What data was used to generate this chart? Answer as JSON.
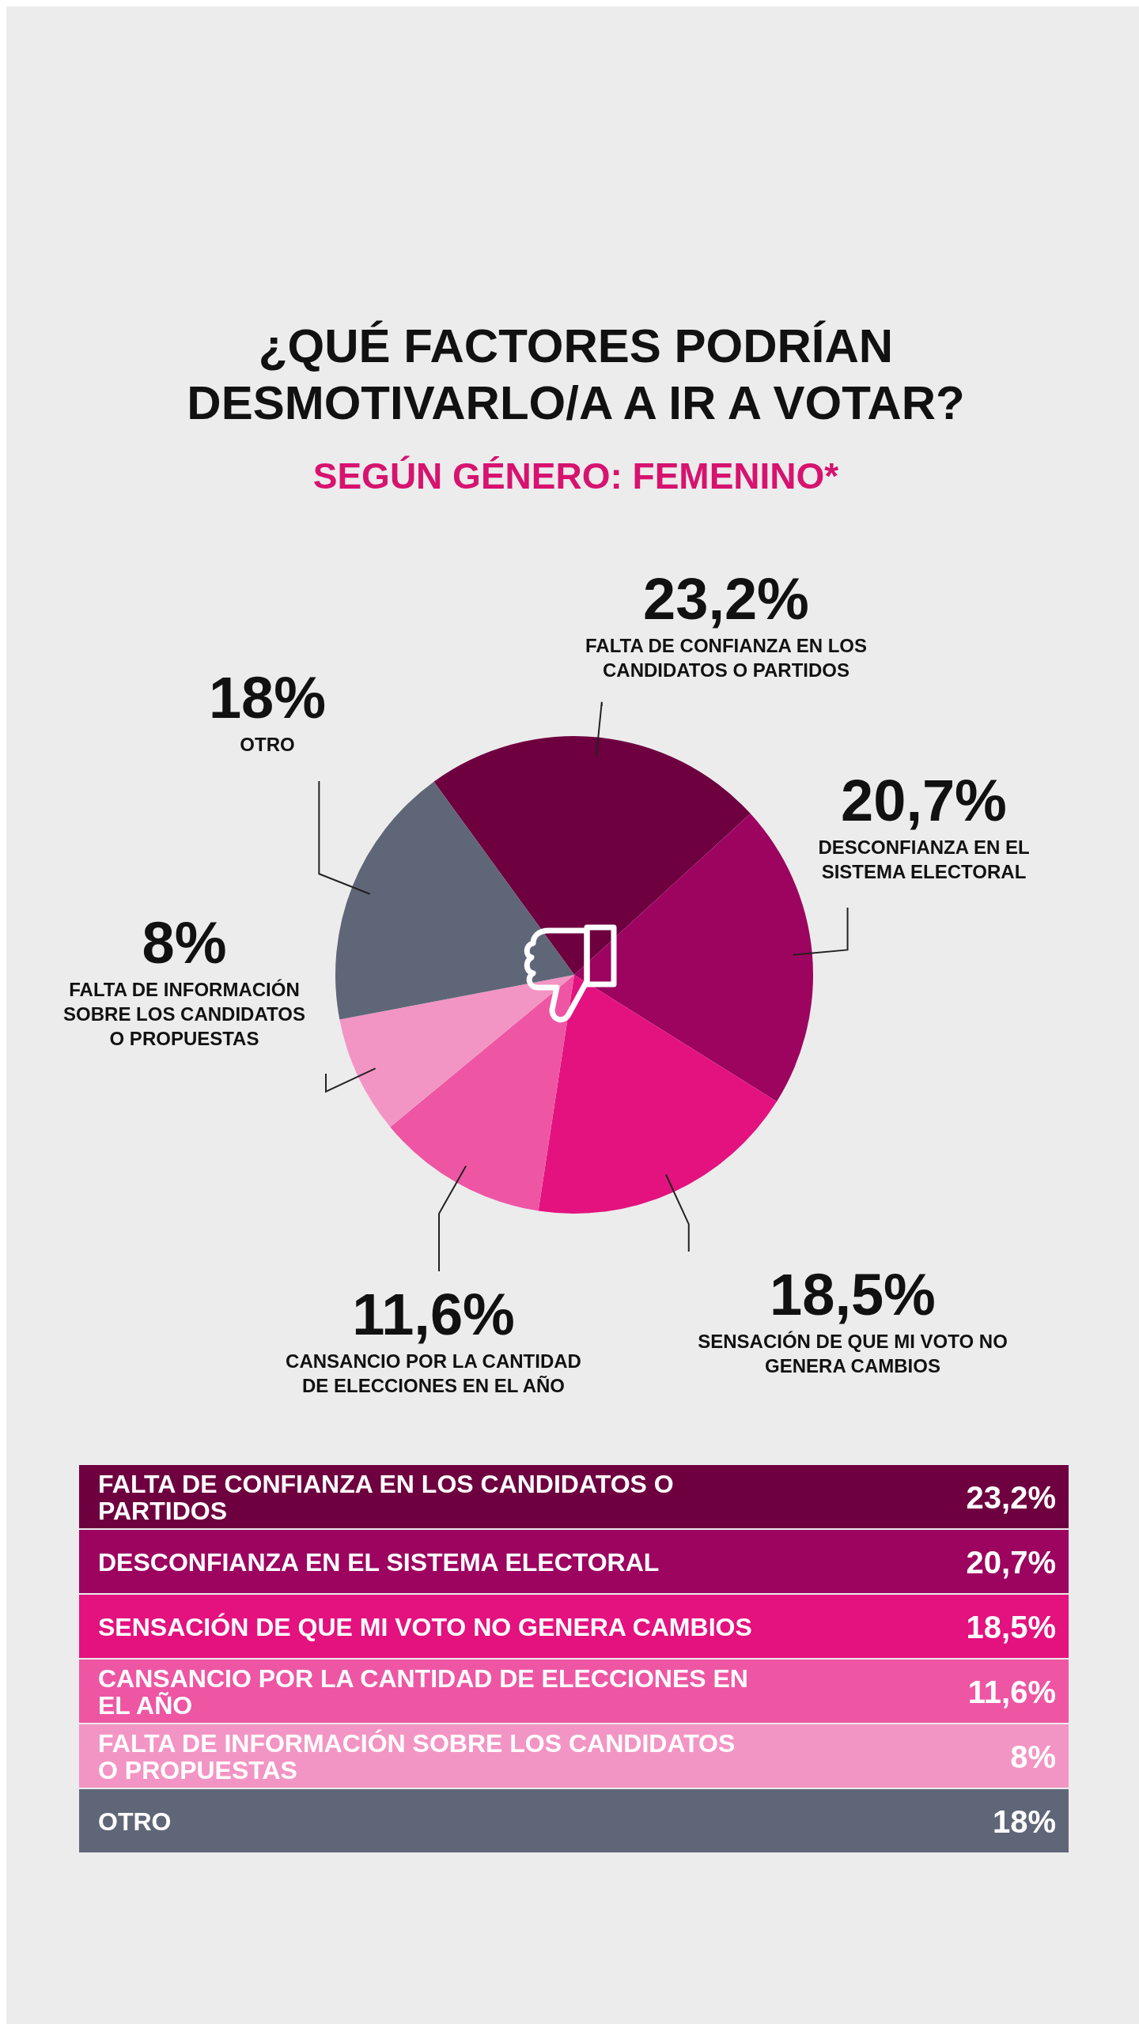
{
  "chart_data": {
    "type": "pie",
    "title": "¿QUÉ FACTORES PODRÍAN DESMOTIVARLO/A A IR A VOTAR?",
    "subtitle": "SEGÚN GÉNERO: FEMENINO*",
    "categories": [
      "FALTA DE CONFIANZA EN LOS CANDIDATOS O PARTIDOS",
      "DESCONFIANZA EN EL SISTEMA ELECTORAL",
      "SENSACIÓN DE QUE MI VOTO NO GENERA CAMBIOS",
      "CANSANCIO POR LA CANTIDAD DE ELECCIONES EN EL AÑO",
      "FALTA DE INFORMACIÓN SOBRE LOS CANDIDATOS O PROPUESTAS",
      "OTRO"
    ],
    "values": [
      23.2,
      20.7,
      18.5,
      11.6,
      8,
      18
    ],
    "value_labels": [
      "23,2%",
      "20,7%",
      "18,5%",
      "11,6%",
      "8%",
      "18%"
    ],
    "colors": [
      "#6e0040",
      "#9c0460",
      "#e3127f",
      "#ee56a4",
      "#f395c4",
      "#5f6678"
    ]
  }
}
